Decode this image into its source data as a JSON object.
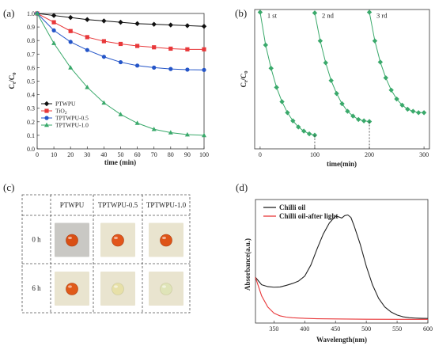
{
  "chart_data": [
    {
      "panel": "(a)",
      "type": "line",
      "xlabel": "time (min)",
      "ylabel": "C_t/C_0",
      "xlim": [
        0,
        100
      ],
      "ylim": [
        0,
        1.0
      ],
      "xticks": [
        0,
        10,
        20,
        30,
        40,
        50,
        60,
        70,
        80,
        90,
        100
      ],
      "yticks": [
        0.0,
        0.1,
        0.2,
        0.3,
        0.4,
        0.5,
        0.6,
        0.7,
        0.8,
        0.9,
        1.0
      ],
      "legend_position": "bottom-left",
      "x": [
        0,
        10,
        20,
        30,
        40,
        50,
        60,
        70,
        80,
        90,
        100
      ],
      "series": [
        {
          "name": "PTWPU",
          "marker": "diamond",
          "color": "#111111",
          "values": [
            1.0,
            0.985,
            0.97,
            0.955,
            0.945,
            0.935,
            0.925,
            0.92,
            0.915,
            0.91,
            0.905
          ]
        },
        {
          "name": "TiO2",
          "marker": "square",
          "color": "#e8383a",
          "values": [
            1.0,
            0.935,
            0.87,
            0.825,
            0.795,
            0.775,
            0.76,
            0.75,
            0.74,
            0.735,
            0.735
          ]
        },
        {
          "name": "TPTWPU-0.5",
          "marker": "circle",
          "color": "#2455c8",
          "values": [
            1.0,
            0.875,
            0.79,
            0.73,
            0.68,
            0.64,
            0.615,
            0.6,
            0.59,
            0.585,
            0.583
          ]
        },
        {
          "name": "TPTWPU-1.0",
          "marker": "triangle",
          "color": "#3aa96b",
          "values": [
            1.0,
            0.78,
            0.6,
            0.455,
            0.34,
            0.255,
            0.19,
            0.145,
            0.12,
            0.105,
            0.1
          ]
        }
      ]
    },
    {
      "panel": "(b)",
      "type": "line",
      "xlabel": "time(min)",
      "ylabel": "C_t/C_0",
      "xlim": [
        -10,
        310
      ],
      "ylim": [
        0,
        1.02
      ],
      "xticks": [
        0,
        100,
        200,
        300
      ],
      "cycle_labels": [
        "1 st",
        "2 nd",
        "3 rd"
      ],
      "color": "#3aa96b",
      "x": [
        0,
        10,
        20,
        30,
        40,
        50,
        60,
        70,
        80,
        90,
        100
      ],
      "cycles": [
        {
          "offset": 0,
          "values": [
            1.0,
            0.76,
            0.59,
            0.45,
            0.345,
            0.265,
            0.205,
            0.16,
            0.13,
            0.11,
            0.1
          ]
        },
        {
          "offset": 100,
          "values": [
            0.995,
            0.79,
            0.63,
            0.5,
            0.405,
            0.33,
            0.275,
            0.24,
            0.215,
            0.205,
            0.2
          ]
        },
        {
          "offset": 200,
          "values": [
            1.0,
            0.79,
            0.635,
            0.52,
            0.43,
            0.365,
            0.32,
            0.29,
            0.275,
            0.265,
            0.265
          ]
        }
      ]
    },
    {
      "panel": "(c)",
      "type": "table",
      "columns": [
        "",
        "PTWPU",
        "TPTWPU-0.5",
        "TPTWPU-1.0"
      ],
      "rows": [
        {
          "label": "0 h",
          "colors": [
            "#d94f14",
            "#e2561c",
            "#de5418"
          ]
        },
        {
          "label": "6 h",
          "colors": [
            "#e05a19",
            "#e7e0a8",
            "#dfe4b8"
          ]
        }
      ]
    },
    {
      "panel": "(d)",
      "type": "line",
      "xlabel": "Wavelength(nm)",
      "ylabel": "Absorbance(a.u.)",
      "xlim": [
        320,
        600
      ],
      "xticks": [
        350,
        400,
        450,
        500,
        550,
        600
      ],
      "legend_position": "top-left",
      "series": [
        {
          "name": "Chilli oil",
          "color": "#222222",
          "x": [
            320,
            330,
            340,
            350,
            360,
            370,
            380,
            390,
            400,
            410,
            420,
            430,
            440,
            450,
            455,
            460,
            465,
            470,
            475,
            480,
            490,
            500,
            510,
            520,
            530,
            540,
            550,
            560,
            570,
            580,
            590,
            600
          ],
          "values": [
            0.37,
            0.31,
            0.295,
            0.29,
            0.292,
            0.305,
            0.32,
            0.34,
            0.38,
            0.47,
            0.6,
            0.72,
            0.81,
            0.865,
            0.86,
            0.85,
            0.87,
            0.875,
            0.855,
            0.79,
            0.64,
            0.46,
            0.31,
            0.2,
            0.13,
            0.09,
            0.065,
            0.05,
            0.043,
            0.04,
            0.038,
            0.037
          ]
        },
        {
          "name": "Chilli oil-after light",
          "color": "#e8383a",
          "x": [
            320,
            330,
            340,
            350,
            360,
            370,
            380,
            400,
            420,
            450,
            500,
            550,
            600
          ],
          "values": [
            0.37,
            0.22,
            0.13,
            0.08,
            0.058,
            0.048,
            0.043,
            0.038,
            0.035,
            0.033,
            0.031,
            0.03,
            0.03
          ]
        }
      ]
    }
  ]
}
